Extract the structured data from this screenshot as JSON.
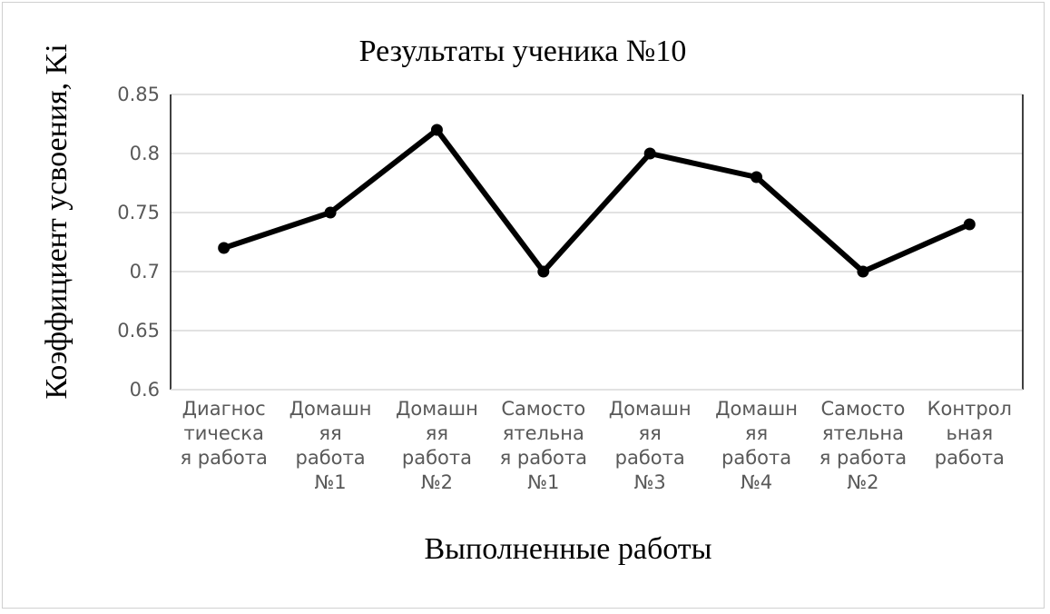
{
  "chart_data": {
    "type": "line",
    "title": "Результаты ученика №10",
    "xlabel": "Выполненные работы",
    "ylabel": "Коэффициент усвоения, Ki",
    "ylim": [
      0.6,
      0.85
    ],
    "yticks": [
      "0.6",
      "0.65",
      "0.7",
      "0.75",
      "0.8",
      "0.85"
    ],
    "grid": true,
    "legend": "none",
    "categories": [
      [
        "Диагнос",
        "тическа",
        "я работа"
      ],
      [
        "Домашн",
        "яя",
        "работа",
        "№1"
      ],
      [
        "Домашн",
        "яя",
        "работа",
        "№2"
      ],
      [
        "Самосто",
        "ятельна",
        "я работа",
        "№1"
      ],
      [
        "Домашн",
        "яя",
        "работа",
        "№3"
      ],
      [
        "Домашн",
        "яя",
        "работа",
        "№4"
      ],
      [
        "Самосто",
        "ятельна",
        "я работа",
        "№2"
      ],
      [
        "Контрол",
        "ьная",
        "работа"
      ]
    ],
    "series": [
      {
        "values": [
          0.72,
          0.75,
          0.82,
          0.7,
          0.8,
          0.78,
          0.7,
          0.74
        ],
        "color": "#000000"
      }
    ]
  }
}
